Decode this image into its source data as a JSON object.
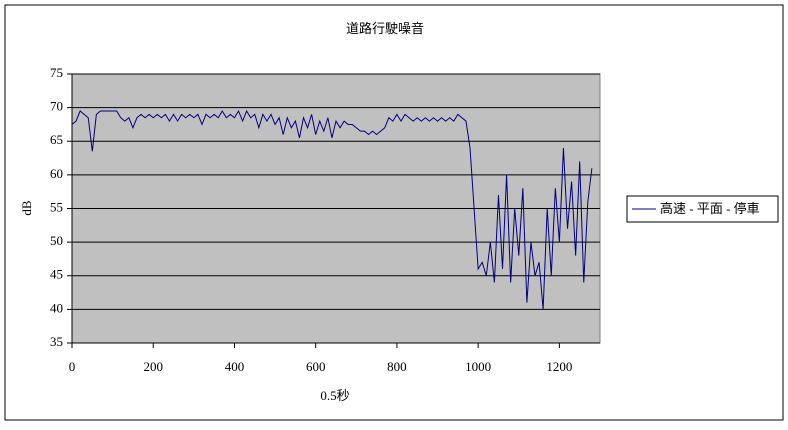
{
  "chart_data": {
    "type": "line",
    "title": "道路行駛噪音",
    "x_label": "0.5秒",
    "y_label": "dB",
    "x": [
      0,
      10,
      20,
      30,
      40,
      50,
      60,
      70,
      80,
      90,
      100,
      110,
      120,
      130,
      140,
      150,
      160,
      170,
      180,
      190,
      200,
      210,
      220,
      230,
      240,
      250,
      260,
      270,
      280,
      290,
      300,
      310,
      320,
      330,
      340,
      350,
      360,
      370,
      380,
      390,
      400,
      410,
      420,
      430,
      440,
      450,
      460,
      470,
      480,
      490,
      500,
      510,
      520,
      530,
      540,
      550,
      560,
      570,
      580,
      590,
      600,
      610,
      620,
      630,
      640,
      650,
      660,
      670,
      680,
      690,
      700,
      710,
      720,
      730,
      740,
      750,
      760,
      770,
      780,
      790,
      800,
      810,
      820,
      830,
      840,
      850,
      860,
      870,
      880,
      890,
      900,
      910,
      920,
      930,
      940,
      950,
      960,
      970,
      980,
      990,
      1000,
      1010,
      1020,
      1030,
      1040,
      1050,
      1060,
      1070,
      1080,
      1090,
      1100,
      1110,
      1120,
      1130,
      1140,
      1150,
      1160,
      1170,
      1180,
      1190,
      1200,
      1210,
      1220,
      1230,
      1240,
      1250,
      1260,
      1270,
      1280
    ],
    "series": [
      {
        "name": "高速 - 平面 - 停車",
        "color": "#000080",
        "values": [
          67.5,
          68,
          69.5,
          69,
          68.5,
          63.5,
          69,
          69.5,
          69.5,
          69.5,
          69.5,
          69.5,
          68.5,
          68,
          68.5,
          67,
          68.5,
          69,
          68.5,
          69,
          68.5,
          69,
          68.5,
          69,
          68,
          69,
          68,
          69,
          68.5,
          69,
          68.5,
          69,
          67.5,
          69,
          68.5,
          69,
          68.5,
          69.5,
          68.5,
          69,
          68.5,
          69.5,
          68,
          69.5,
          68.5,
          69,
          67,
          69,
          68,
          69,
          67.5,
          68.5,
          66,
          68.5,
          67,
          68,
          65.5,
          68.5,
          67,
          69,
          66,
          68,
          66.5,
          68.5,
          65.5,
          68,
          67,
          68,
          67.5,
          67.5,
          67,
          66.5,
          66.5,
          66,
          66.5,
          66,
          66.5,
          67,
          68.5,
          68,
          69,
          68,
          69,
          68.5,
          68,
          68.5,
          68,
          68.5,
          68,
          68.5,
          68,
          68.5,
          68,
          68.5,
          68,
          69,
          68.5,
          68,
          64,
          55,
          46,
          47,
          45,
          50,
          44,
          57,
          46,
          60,
          44,
          55,
          48,
          58,
          41,
          50,
          45,
          47,
          40,
          55,
          45,
          58,
          50,
          64,
          52,
          59,
          48,
          62,
          44,
          56,
          61
        ]
      }
    ],
    "xlim": [
      0,
      1300
    ],
    "xticks": [
      0,
      200,
      400,
      600,
      800,
      1000,
      1200
    ],
    "ylim": [
      35,
      75
    ],
    "yticks": [
      35,
      40,
      45,
      50,
      55,
      60,
      65,
      70,
      75
    ],
    "grid": true,
    "legend": "right"
  }
}
